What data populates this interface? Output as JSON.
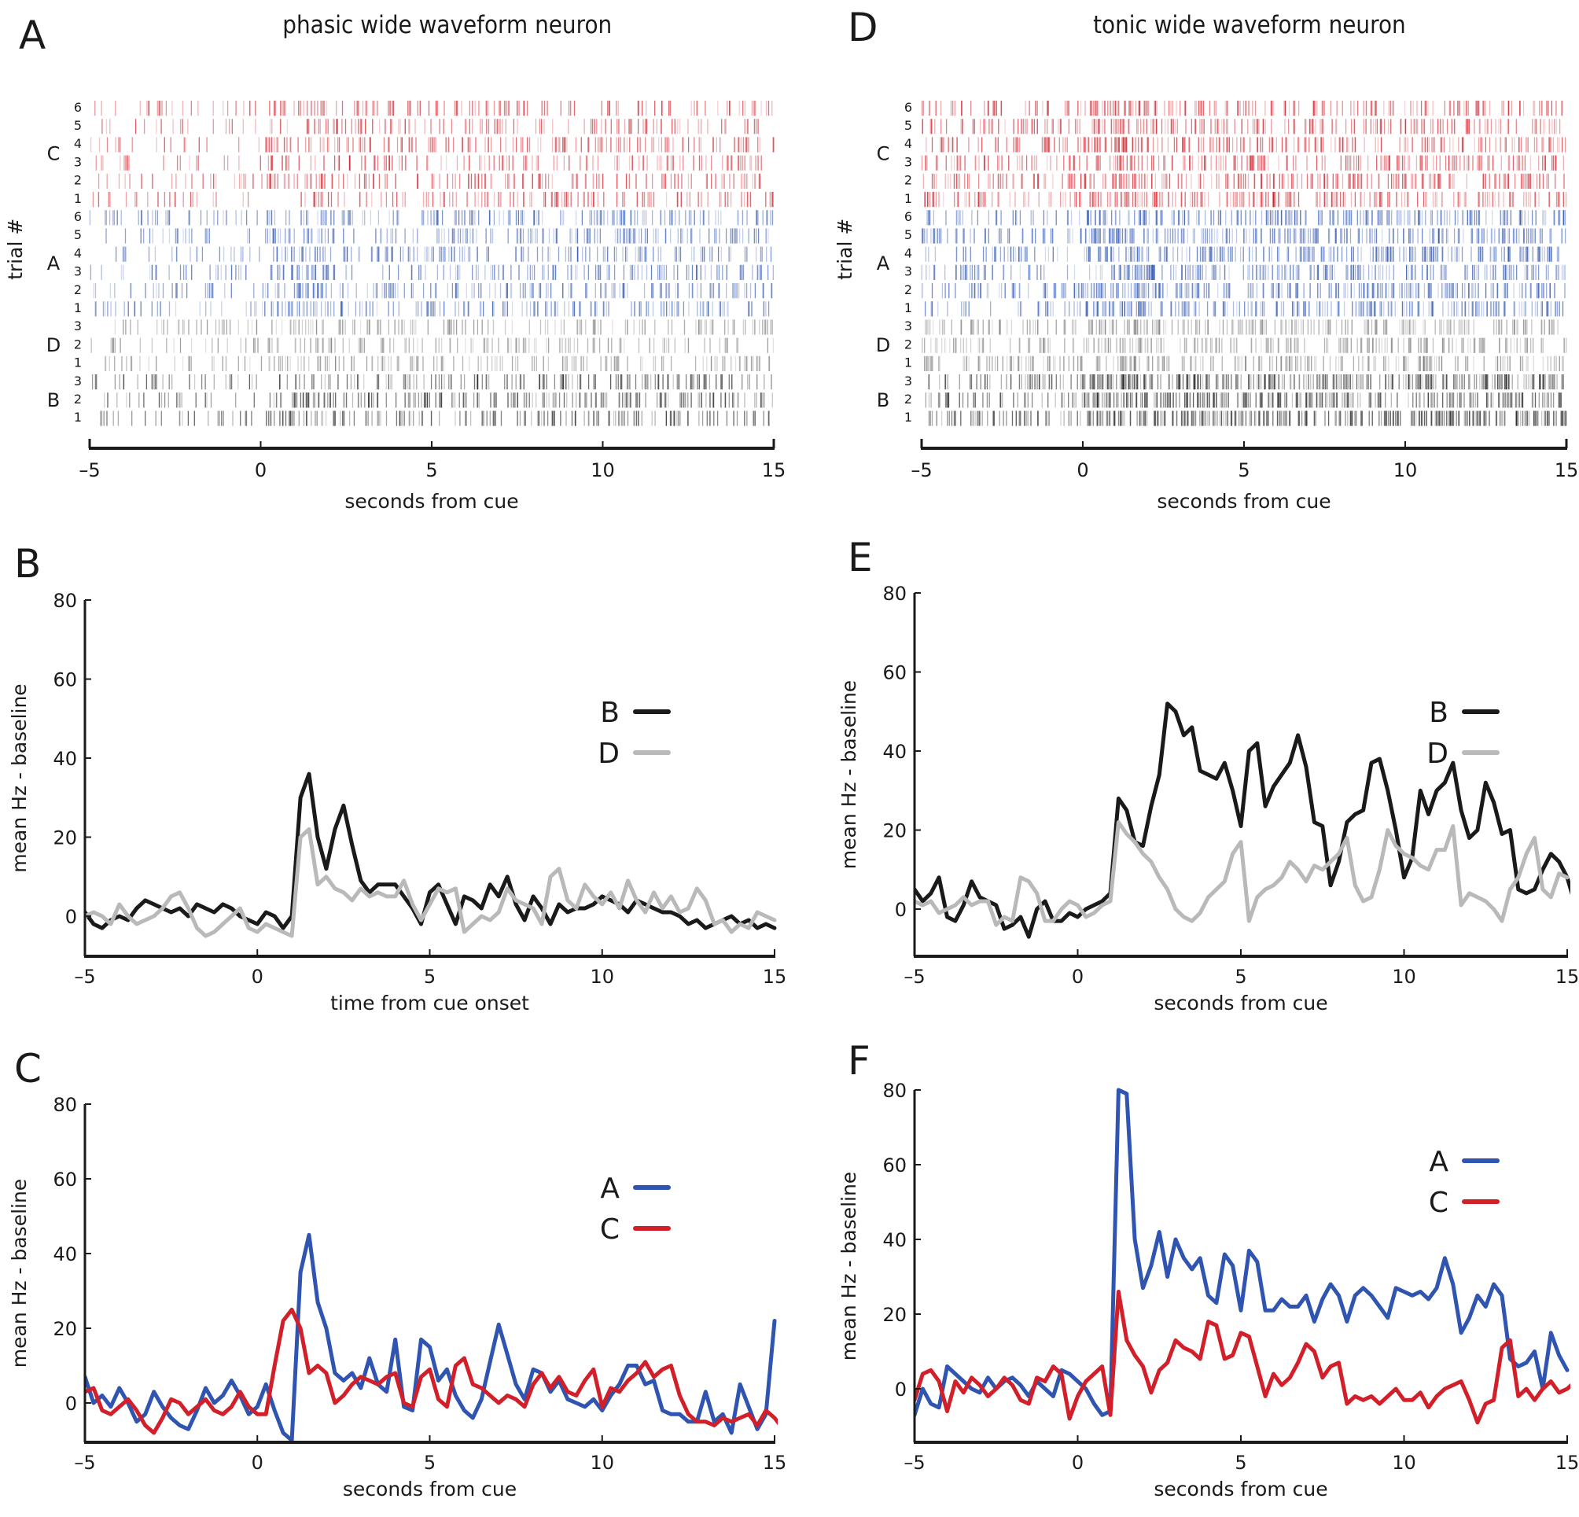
{
  "panels": {
    "A": {
      "letter": "A",
      "title": "phasic wide waveform neuron"
    },
    "B": {
      "letter": "B"
    },
    "C": {
      "letter": "C"
    },
    "D": {
      "letter": "D",
      "title": "tonic wide waveform neuron"
    },
    "E": {
      "letter": "E"
    },
    "F": {
      "letter": "F"
    }
  },
  "chart_data": [
    {
      "id": "A",
      "type": "raster",
      "title": "phasic wide waveform neuron",
      "xlabel": "seconds from cue",
      "ylabel": "trial #",
      "xlim": [
        -5,
        15
      ],
      "xticks": [
        -5,
        0,
        5,
        10,
        15
      ],
      "xtick_labels": [
        "–5",
        "0",
        "5",
        "10",
        "15"
      ],
      "groups": [
        {
          "name": "C",
          "color": "#d0202a",
          "trials": [
            "6",
            "5",
            "4",
            "3",
            "2",
            "1"
          ],
          "pre_rate": 4,
          "post_rate": 8
        },
        {
          "name": "A",
          "color": "#2f55b0",
          "trials": [
            "6",
            "5",
            "4",
            "3",
            "2",
            "1"
          ],
          "pre_rate": 5,
          "post_rate": 9
        },
        {
          "name": "D",
          "color": "#777777",
          "trials": [
            "3",
            "2",
            "1"
          ],
          "pre_rate": 5,
          "post_rate": 8
        },
        {
          "name": "B",
          "color": "#222222",
          "trials": [
            "3",
            "2",
            "1"
          ],
          "pre_rate": 5,
          "post_rate": 10
        }
      ]
    },
    {
      "id": "D",
      "type": "raster",
      "title": "tonic wide waveform neuron",
      "xlabel": "seconds from cue",
      "ylabel": "trial #",
      "xlim": [
        -5,
        15
      ],
      "xticks": [
        -5,
        0,
        5,
        10,
        15
      ],
      "xtick_labels": [
        "–5",
        "0",
        "5",
        "10",
        "15"
      ],
      "groups": [
        {
          "name": "C",
          "color": "#d0202a",
          "trials": [
            "6",
            "5",
            "4",
            "3",
            "2",
            "1"
          ],
          "pre_rate": 9,
          "post_rate": 11
        },
        {
          "name": "A",
          "color": "#2f55b0",
          "trials": [
            "6",
            "5",
            "4",
            "3",
            "2",
            "1"
          ],
          "pre_rate": 7,
          "post_rate": 14
        },
        {
          "name": "D",
          "color": "#777777",
          "trials": [
            "3",
            "2",
            "1"
          ],
          "pre_rate": 8,
          "post_rate": 11
        },
        {
          "name": "B",
          "color": "#222222",
          "trials": [
            "3",
            "2",
            "1"
          ],
          "pre_rate": 10,
          "post_rate": 18
        }
      ]
    },
    {
      "id": "B",
      "type": "line",
      "xlabel": "time from cue onset",
      "ylabel": "mean Hz - baseline",
      "xlim": [
        -5,
        15
      ],
      "ylim": [
        -10,
        80
      ],
      "xticks": [
        -5,
        0,
        5,
        10,
        15
      ],
      "xtick_labels": [
        "–5",
        "0",
        "5",
        "10",
        "15"
      ],
      "yticks": [
        0,
        20,
        40,
        60,
        80
      ],
      "legend": "right",
      "x_start": -5,
      "x_step": 0.25,
      "series": [
        {
          "name": "B",
          "color": "#1a1a1a",
          "values": [
            1,
            -2,
            -3,
            -1,
            0,
            -1,
            2,
            4,
            3,
            2,
            1,
            2,
            0,
            3,
            2,
            1,
            3,
            2,
            0,
            -1,
            -2,
            1,
            0,
            -3,
            0,
            30,
            36,
            20,
            12,
            22,
            28,
            18,
            9,
            6,
            8,
            8,
            8,
            5,
            2,
            -2,
            6,
            8,
            3,
            -2,
            5,
            4,
            2,
            8,
            5,
            10,
            3,
            -1,
            5,
            2,
            -2,
            3,
            1,
            2,
            2,
            3,
            5,
            4,
            3,
            1,
            4,
            3,
            2,
            1,
            1,
            0,
            -2,
            -1,
            -3,
            -2,
            -1,
            0,
            -2,
            -1,
            -3,
            -2,
            -3
          ]
        },
        {
          "name": "D",
          "color": "#b9b9b9",
          "values": [
            0,
            1,
            0,
            -2,
            3,
            0,
            -2,
            -1,
            0,
            2,
            5,
            6,
            2,
            -3,
            -5,
            -4,
            -2,
            0,
            2,
            -3,
            -4,
            -2,
            -3,
            -4,
            -5,
            20,
            22,
            8,
            10,
            7,
            6,
            4,
            7,
            5,
            6,
            5,
            5,
            9,
            3,
            -1,
            3,
            7,
            6,
            7,
            -4,
            -2,
            0,
            -1,
            1,
            7,
            4,
            3,
            2,
            -2,
            10,
            12,
            4,
            2,
            8,
            5,
            3,
            6,
            2,
            9,
            4,
            1,
            6,
            2,
            5,
            1,
            2,
            7,
            4,
            -2,
            -1,
            -4,
            -2,
            -3,
            1,
            0,
            -1
          ]
        }
      ]
    },
    {
      "id": "C",
      "type": "line",
      "xlabel": "seconds from cue",
      "ylabel": "mean Hz - baseline",
      "xlim": [
        -5,
        15
      ],
      "ylim": [
        -10,
        80
      ],
      "xticks": [
        -5,
        0,
        5,
        10,
        15
      ],
      "xtick_labels": [
        "–5",
        "0",
        "5",
        "10",
        "15"
      ],
      "yticks": [
        0,
        20,
        40,
        60,
        80
      ],
      "legend": "right",
      "x_start": -5,
      "x_step": 0.25,
      "series": [
        {
          "name": "A",
          "color": "#2f55b0",
          "values": [
            7,
            0,
            2,
            -1,
            4,
            0,
            -5,
            -3,
            3,
            -1,
            -4,
            -6,
            -7,
            -2,
            4,
            0,
            2,
            6,
            2,
            -3,
            -1,
            5,
            -2,
            -8,
            -10,
            35,
            45,
            27,
            20,
            8,
            6,
            8,
            4,
            12,
            5,
            3,
            17,
            -1,
            -2,
            17,
            15,
            6,
            9,
            2,
            -2,
            -4,
            1,
            11,
            21,
            13,
            5,
            1,
            9,
            8,
            3,
            6,
            1,
            0,
            -1,
            1,
            -2,
            2,
            5,
            10,
            10,
            5,
            6,
            -2,
            -3,
            -3,
            -5,
            -5,
            3,
            -5,
            -3,
            -8,
            5,
            -1,
            -7,
            -3,
            22
          ]
        },
        {
          "name": "C",
          "color": "#d2202a",
          "values": [
            3,
            4,
            -2,
            -3,
            -1,
            1,
            -2,
            -6,
            -8,
            -4,
            1,
            0,
            -3,
            -1,
            1,
            -2,
            -3,
            -1,
            3,
            -1,
            -3,
            -3,
            10,
            22,
            25,
            20,
            8,
            10,
            8,
            0,
            2,
            5,
            7,
            6,
            5,
            7,
            8,
            0,
            -1,
            7,
            9,
            1,
            -1,
            10,
            12,
            5,
            4,
            2,
            0,
            2,
            1,
            -1,
            5,
            8,
            4,
            7,
            3,
            2,
            6,
            9,
            -1,
            4,
            3,
            6,
            8,
            11,
            7,
            9,
            10,
            2,
            -3,
            -5,
            -5,
            -6,
            -4,
            -5,
            -4,
            -3,
            -6,
            -2,
            -4,
            -7,
            2
          ]
        }
      ]
    },
    {
      "id": "E",
      "type": "line",
      "xlabel": "seconds from cue",
      "ylabel": "mean Hz - baseline",
      "xlim": [
        -5,
        15
      ],
      "ylim": [
        -10,
        80
      ],
      "xticks": [
        -5,
        0,
        5,
        10,
        15
      ],
      "xtick_labels": [
        "–5",
        "0",
        "5",
        "10",
        "15"
      ],
      "yticks": [
        0,
        20,
        40,
        60,
        80
      ],
      "legend": "right",
      "x_start": -5,
      "x_step": 0.25,
      "series": [
        {
          "name": "B",
          "color": "#1a1a1a",
          "values": [
            5,
            2,
            4,
            8,
            -2,
            -3,
            1,
            7,
            3,
            2,
            1,
            -5,
            -4,
            -2,
            -7,
            0,
            2,
            -3,
            -3,
            -1,
            -2,
            0,
            1,
            2,
            4,
            28,
            25,
            17,
            16,
            26,
            34,
            52,
            50,
            44,
            46,
            35,
            34,
            33,
            37,
            30,
            21,
            40,
            42,
            26,
            31,
            34,
            37,
            44,
            36,
            22,
            21,
            6,
            12,
            22,
            24,
            25,
            37,
            38,
            30,
            20,
            8,
            13,
            30,
            24,
            30,
            32,
            37,
            25,
            18,
            20,
            32,
            27,
            19,
            20,
            5,
            4,
            5,
            10,
            14,
            12,
            8,
            1,
            12
          ]
        },
        {
          "name": "D",
          "color": "#b9b9b9",
          "values": [
            2,
            1,
            2,
            -1,
            0,
            1,
            3,
            1,
            2,
            2,
            -4,
            -2,
            -3,
            8,
            7,
            4,
            -3,
            -3,
            0,
            2,
            1,
            -2,
            -1,
            1,
            2,
            22,
            19,
            17,
            14,
            12,
            8,
            5,
            0,
            -2,
            -3,
            -1,
            3,
            5,
            7,
            14,
            17,
            -3,
            3,
            5,
            6,
            8,
            12,
            10,
            7,
            11,
            10,
            12,
            14,
            18,
            6,
            2,
            3,
            10,
            20,
            16,
            14,
            13,
            11,
            10,
            15,
            15,
            21,
            1,
            4,
            3,
            2,
            0,
            -3,
            5,
            8,
            14,
            18,
            5,
            3,
            9,
            8
          ]
        }
      ]
    },
    {
      "id": "F",
      "type": "line",
      "xlabel": "seconds from cue",
      "ylabel": "mean Hz - baseline",
      "xlim": [
        -5,
        15
      ],
      "ylim": [
        -10,
        80
      ],
      "xticks": [
        -5,
        0,
        5,
        10,
        15
      ],
      "xtick_labels": [
        "–5",
        "0",
        "5",
        "10",
        "15"
      ],
      "yticks": [
        0,
        20,
        40,
        60,
        80
      ],
      "legend": "right",
      "x_start": -5,
      "x_step": 0.25,
      "series": [
        {
          "name": "A",
          "color": "#2f55b0",
          "values": [
            -7,
            0,
            -4,
            -5,
            6,
            4,
            2,
            0,
            -1,
            3,
            0,
            2,
            3,
            1,
            -2,
            2,
            0,
            -2,
            5,
            4,
            2,
            0,
            -4,
            -7,
            -6,
            80,
            79,
            40,
            27,
            33,
            42,
            30,
            40,
            35,
            32,
            35,
            25,
            23,
            36,
            33,
            21,
            37,
            34,
            21,
            21,
            24,
            22,
            22,
            25,
            18,
            24,
            28,
            25,
            18,
            25,
            27,
            25,
            22,
            19,
            27,
            26,
            25,
            26,
            24,
            27,
            35,
            28,
            15,
            19,
            25,
            22,
            28,
            25,
            8,
            6,
            7,
            10,
            0,
            15,
            9,
            5
          ]
        },
        {
          "name": "C",
          "color": "#d2202a",
          "values": [
            -3,
            4,
            5,
            2,
            -6,
            2,
            -1,
            3,
            1,
            -2,
            0,
            3,
            1,
            -3,
            -4,
            3,
            2,
            6,
            4,
            -8,
            -2,
            2,
            4,
            6,
            -7,
            26,
            13,
            9,
            6,
            -1,
            5,
            7,
            13,
            11,
            10,
            8,
            18,
            17,
            8,
            9,
            15,
            14,
            6,
            -2,
            4,
            1,
            3,
            7,
            12,
            10,
            3,
            6,
            7,
            -4,
            -2,
            -3,
            -2,
            -4,
            -2,
            0,
            -3,
            -3,
            -1,
            -5,
            -2,
            0,
            1,
            2,
            -3,
            -9,
            -4,
            -3,
            11,
            13,
            -2,
            0,
            -3,
            0,
            2,
            -1,
            0,
            2
          ]
        }
      ]
    }
  ]
}
